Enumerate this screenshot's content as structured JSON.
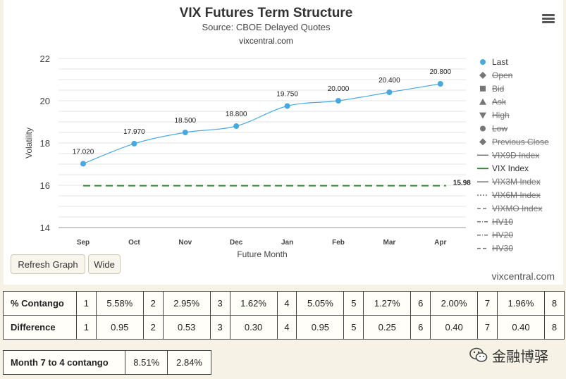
{
  "header": {
    "title": "VIX Futures Term Structure",
    "subtitle": "Source: CBOE Delayed Quotes",
    "link": "vixcentral.com",
    "menu_icon": "hamburger-menu-icon"
  },
  "chart_data": {
    "type": "line",
    "title": "VIX Futures Term Structure",
    "subtitle": "Source: CBOE Delayed Quotes",
    "xlabel": "Future Month",
    "ylabel": "Volatility",
    "categories": [
      "Sep",
      "Oct",
      "Nov",
      "Dec",
      "Jan",
      "Feb",
      "Mar",
      "Apr"
    ],
    "ylim": [
      14,
      22
    ],
    "yticks": [
      14,
      16,
      18,
      20,
      22
    ],
    "grid": true,
    "legend_position": "right",
    "series": [
      {
        "name": "Last",
        "color": "#4aa9dc",
        "values": [
          17.02,
          17.97,
          18.5,
          18.8,
          19.75,
          20.0,
          20.4,
          20.8
        ],
        "value_labels": [
          "17.020",
          "17.970",
          "18.500",
          "18.800",
          "19.750",
          "20.000",
          "20.400",
          "20.800"
        ]
      },
      {
        "name": "VIX Index",
        "color": "#2e8b2e",
        "style": "dashed",
        "values": [
          15.98,
          15.98,
          15.98,
          15.98,
          15.98,
          15.98,
          15.98,
          15.98
        ],
        "end_label": "15.98"
      }
    ],
    "legend": [
      {
        "label": "Last",
        "symbol": "circle",
        "color": "#4aa9dc",
        "active": true
      },
      {
        "label": "Open",
        "symbol": "diamond",
        "color": "#777777",
        "active": false
      },
      {
        "label": "Bid",
        "symbol": "square",
        "color": "#777777",
        "active": false
      },
      {
        "label": "Ask",
        "symbol": "triangle",
        "color": "#777777",
        "active": false
      },
      {
        "label": "High",
        "symbol": "triangle-down",
        "color": "#777777",
        "active": false
      },
      {
        "label": "Low",
        "symbol": "circle",
        "color": "#777777",
        "active": false
      },
      {
        "label": "Previous Close",
        "symbol": "diamond",
        "color": "#777777",
        "active": false
      },
      {
        "label": "VIX9D Index",
        "symbol": "line",
        "color": "#777777",
        "active": false
      },
      {
        "label": "VIX Index",
        "symbol": "line",
        "color": "#2e8b2e",
        "active": true
      },
      {
        "label": "VIX3M Index",
        "symbol": "line",
        "color": "#777777",
        "active": false
      },
      {
        "label": "VIX6M Index",
        "symbol": "dotted",
        "color": "#777777",
        "active": false
      },
      {
        "label": "VIXMO Index",
        "symbol": "dashed",
        "color": "#777777",
        "active": false
      },
      {
        "label": "HV10",
        "symbol": "dashdot",
        "color": "#777777",
        "active": false
      },
      {
        "label": "HV20",
        "symbol": "dashdot",
        "color": "#777777",
        "active": false
      },
      {
        "label": "HV30",
        "symbol": "dashed",
        "color": "#777777",
        "active": false
      }
    ]
  },
  "controls": {
    "refresh_label": "Refresh Graph",
    "wide_label": "Wide",
    "watermark": "vixcentral.com"
  },
  "contango_table": {
    "rows": [
      {
        "label": "% Contango",
        "cells": [
          [
            "1",
            "5.58%"
          ],
          [
            "2",
            "2.95%"
          ],
          [
            "3",
            "1.62%"
          ],
          [
            "4",
            "5.05%"
          ],
          [
            "5",
            "1.27%"
          ],
          [
            "6",
            "2.00%"
          ],
          [
            "7",
            "1.96%"
          ],
          [
            "8",
            ""
          ]
        ]
      },
      {
        "label": "Difference",
        "cells": [
          [
            "1",
            "0.95"
          ],
          [
            "2",
            "0.53"
          ],
          [
            "3",
            "0.30"
          ],
          [
            "4",
            "0.95"
          ],
          [
            "5",
            "0.25"
          ],
          [
            "6",
            "0.40"
          ],
          [
            "7",
            "0.40"
          ],
          [
            "8",
            ""
          ]
        ]
      }
    ]
  },
  "month_table": {
    "label": "Month 7 to 4 contango",
    "values": [
      "8.51%",
      "2.84%"
    ]
  },
  "brand_watermark": {
    "text": "金融博驿",
    "icon": "wechat-icon"
  }
}
